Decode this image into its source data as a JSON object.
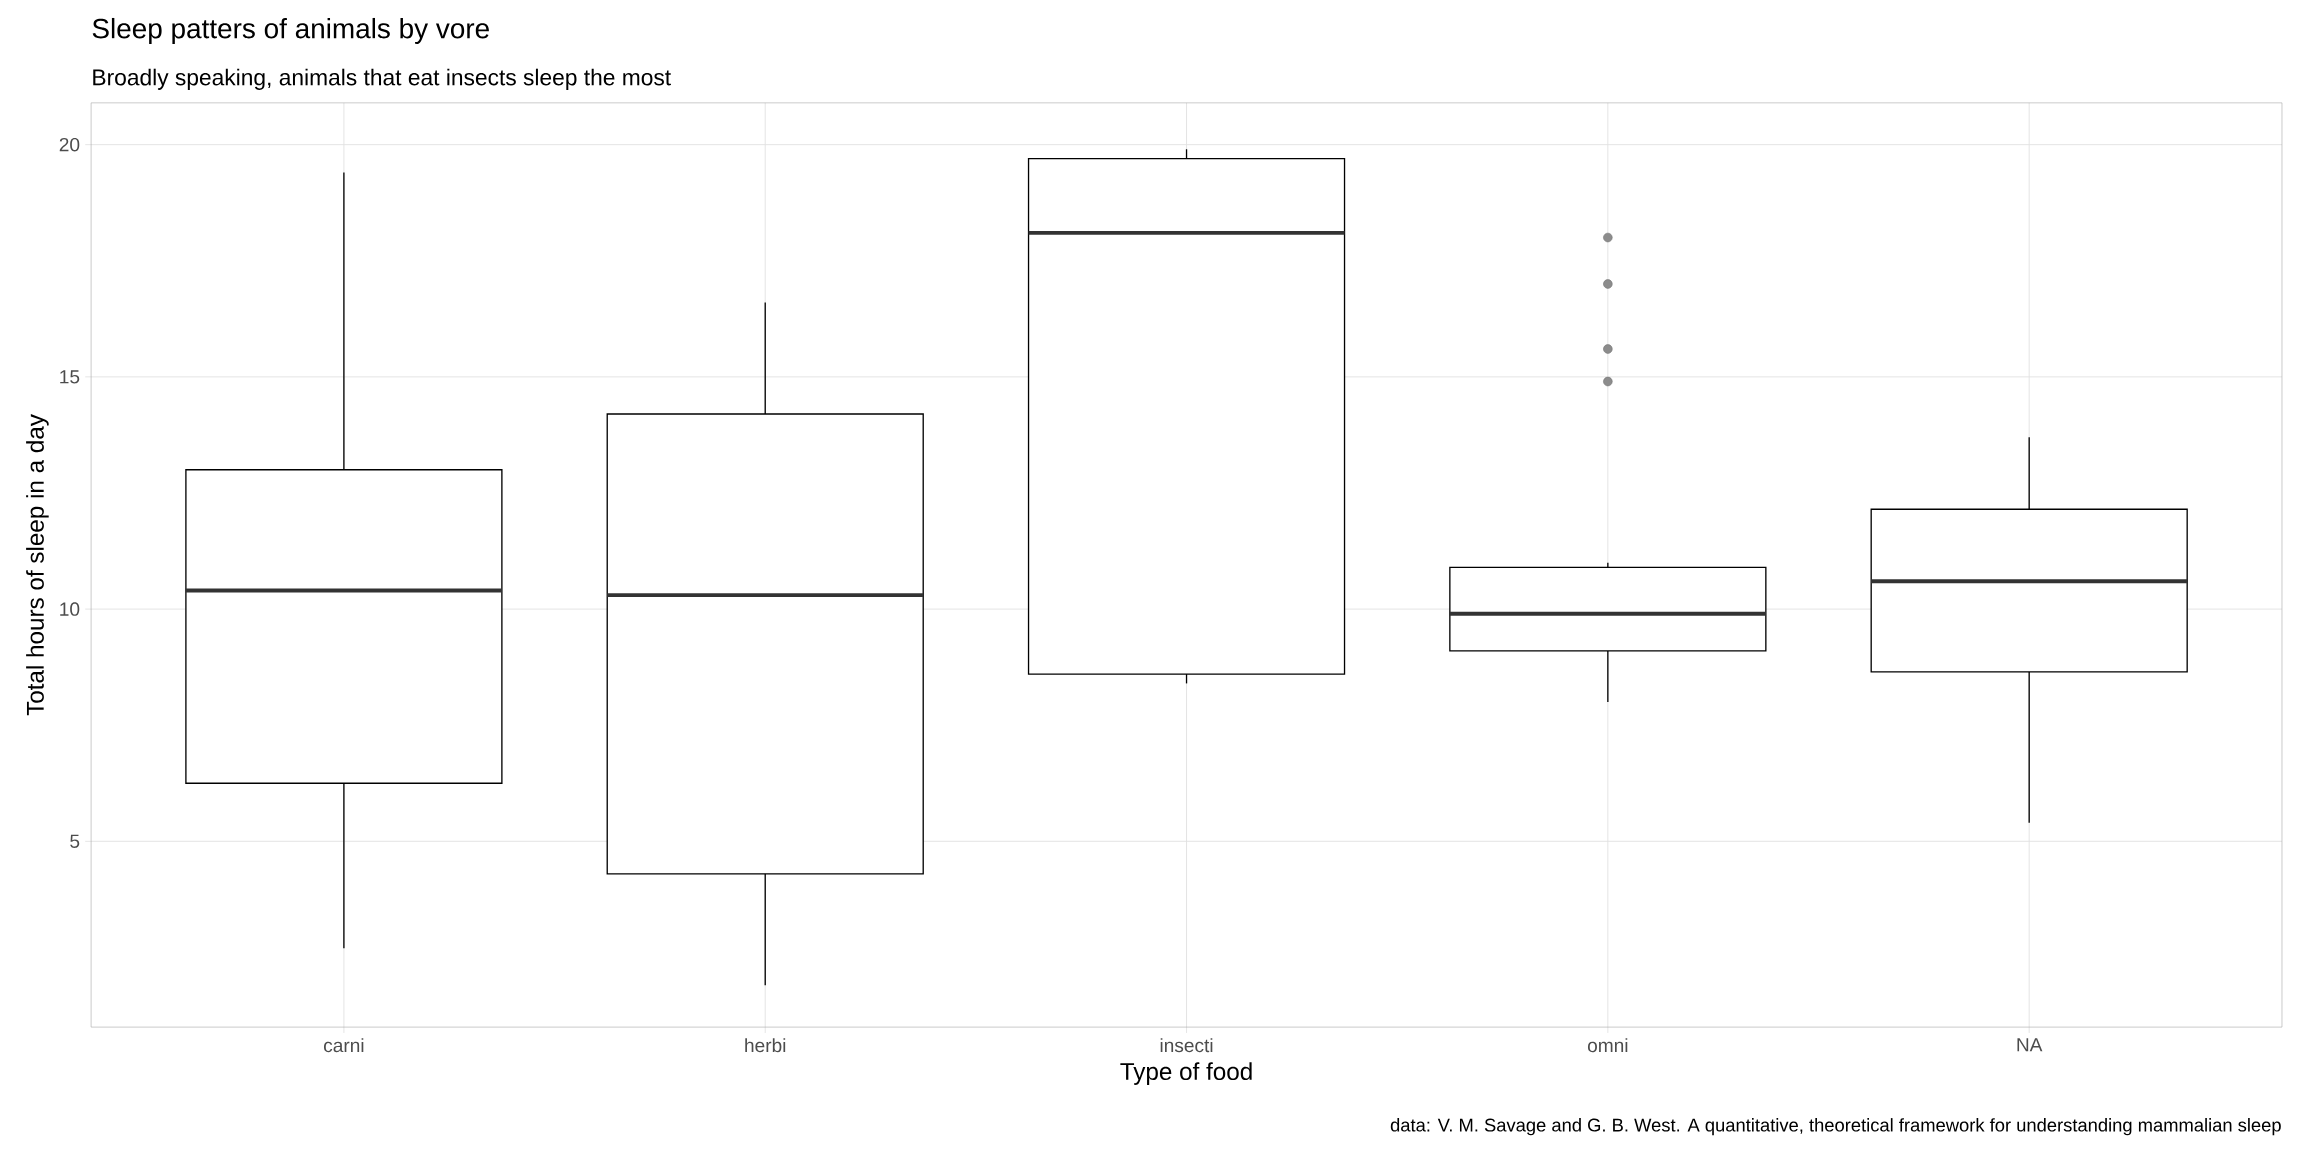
{
  "chart_data": {
    "type": "box",
    "title": "Sleep patters of animals by vore",
    "subtitle": "Broadly speaking, animals that eat insects sleep the most",
    "xlabel": "Type of food",
    "ylabel": "Total hours of sleep in a day",
    "categories": [
      "carni",
      "herbi",
      "insecti",
      "omni",
      "NA"
    ],
    "boxes": [
      {
        "low": 2.7,
        "q1": 6.25,
        "median": 10.4,
        "q3": 13.0,
        "high": 19.4
      },
      {
        "low": 1.9,
        "q1": 4.3,
        "median": 10.3,
        "q3": 14.2,
        "high": 16.6
      },
      {
        "low": 8.4,
        "q1": 8.6,
        "median": 18.1,
        "q3": 19.7,
        "high": 19.9
      },
      {
        "low": 8.0,
        "q1": 9.1,
        "median": 9.9,
        "q3": 10.9,
        "high": 11.0,
        "outliers": [
          14.9,
          15.6,
          17.0,
          18.0
        ]
      },
      {
        "low": 5.4,
        "q1": 8.65,
        "median": 10.6,
        "q3": 12.15,
        "high": 13.7
      }
    ],
    "ylim": [
      1.0,
      20.9
    ],
    "yticks": [
      5,
      10,
      15,
      20
    ],
    "grid": true,
    "annotations": [
      "data: V. M. Savage and G. B. West. A quantitative, theoretical framework for understanding mammalian sleep"
    ]
  }
}
